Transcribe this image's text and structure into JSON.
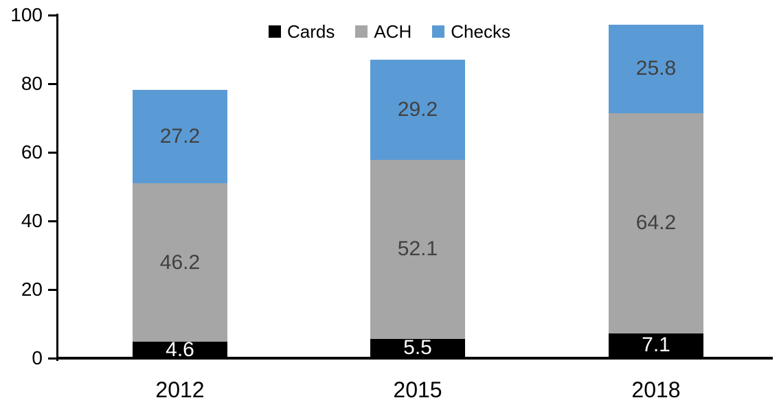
{
  "chart_data": {
    "type": "bar",
    "stacked": true,
    "title": "",
    "xlabel": "",
    "ylabel": "",
    "categories": [
      "2012",
      "2015",
      "2018"
    ],
    "series": [
      {
        "name": "Cards",
        "color": "#000000",
        "label_color": "#ffffff",
        "values": [
          4.6,
          5.5,
          7.1
        ]
      },
      {
        "name": "ACH",
        "color": "#a6a6a6",
        "label_color": "#404040",
        "values": [
          46.2,
          52.1,
          64.2
        ]
      },
      {
        "name": "Checks",
        "color": "#5b9bd5",
        "label_color": "#404040",
        "values": [
          27.2,
          29.2,
          25.8
        ]
      }
    ],
    "totals": [
      78.0,
      86.8,
      97.1
    ],
    "ylim": [
      0,
      100
    ],
    "yticks": [
      0,
      20,
      40,
      60,
      80,
      100
    ],
    "grid": false,
    "legend_position": "top-center",
    "background_color": "#ffffff",
    "axis_color": "#000000"
  }
}
